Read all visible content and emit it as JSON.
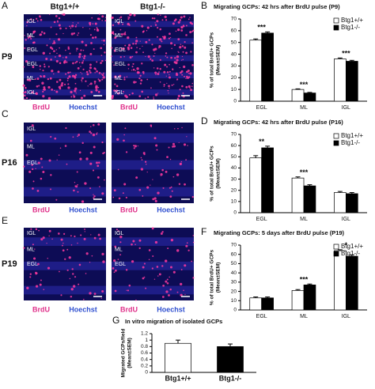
{
  "figure": {
    "headers": [
      "Btg1+/+",
      "Btg1-/-"
    ],
    "rows": [
      {
        "letter": "A",
        "age": "P9",
        "layers": [
          [
            "IGL",
            "ML",
            "EGL",
            "EGL",
            "ML",
            "IGL"
          ],
          [
            "IGL",
            "ML",
            "EGL",
            "EGL",
            "ML",
            "IGL"
          ]
        ],
        "stains": [
          "BrdU",
          "Hoechst"
        ]
      },
      {
        "letter": "C",
        "age": "P16",
        "layers": [
          [
            "IGL",
            "ML",
            "EGL"
          ],
          []
        ],
        "stains": [
          "BrdU",
          "Hoechst"
        ]
      },
      {
        "letter": "E",
        "age": "P19",
        "layers": [
          [
            "IGL",
            "ML",
            "EGL"
          ],
          [
            "IGL",
            "ML",
            "EGL"
          ]
        ],
        "stains": [
          "BrdU",
          "Hoechst"
        ]
      }
    ]
  },
  "chart_data": [
    {
      "type": "bar",
      "letter": "B",
      "title": "Migrating GCPs: 42 hrs after BrdU pulse (P9)",
      "ylabel": [
        "% of total BrdU+ GCPs",
        "(Mean±SEM)"
      ],
      "categories": [
        "EGL",
        "ML",
        "IGL"
      ],
      "series": [
        {
          "name": "Btg1+/+",
          "color": "#ffffff",
          "values": [
            52,
            10,
            36
          ],
          "errors": [
            1,
            0.5,
            0.8
          ]
        },
        {
          "name": "Btg1-/-",
          "color": "#000000",
          "values": [
            58,
            7,
            34
          ],
          "errors": [
            1,
            0.5,
            0.8
          ]
        }
      ],
      "significance": [
        "***",
        "***",
        "***"
      ],
      "ylim": [
        0,
        70
      ],
      "yticks": [
        0,
        10,
        20,
        30,
        40,
        50,
        60,
        70
      ]
    },
    {
      "type": "bar",
      "letter": "D",
      "title": "Migrating GCPs: 42 hrs after BrdU pulse (P16)",
      "ylabel": [
        "% of total BrdU+ GCPs",
        "(Mean±SEM)"
      ],
      "categories": [
        "EGL",
        "ML",
        "IGL"
      ],
      "series": [
        {
          "name": "Btg1+/+",
          "color": "#ffffff",
          "values": [
            49,
            31,
            18
          ],
          "errors": [
            2,
            1,
            1
          ]
        },
        {
          "name": "Btg1-/-",
          "color": "#000000",
          "values": [
            58,
            24,
            17
          ],
          "errors": [
            1.5,
            1,
            1
          ]
        }
      ],
      "significance": [
        "**",
        "***",
        null
      ],
      "ylim": [
        0,
        70
      ],
      "yticks": [
        0,
        10,
        20,
        30,
        40,
        50,
        60,
        70
      ]
    },
    {
      "type": "bar",
      "letter": "F",
      "title": "Migrating GCPs: 5 days after BrdU pulse (P19)",
      "ylabel": [
        "% of total BrdU+ GCPs",
        "(Mean±SEM)"
      ],
      "categories": [
        "EGL",
        "ML",
        "IGL"
      ],
      "series": [
        {
          "name": "Btg1+/+",
          "color": "#ffffff",
          "values": [
            13,
            21,
            64
          ],
          "errors": [
            1,
            1,
            1
          ]
        },
        {
          "name": "Btg1-/-",
          "color": "#000000",
          "values": [
            13,
            27,
            58
          ],
          "errors": [
            1,
            1,
            1.5
          ]
        }
      ],
      "significance": [
        null,
        "***",
        "*"
      ],
      "ylim": [
        0,
        70
      ],
      "yticks": [
        0,
        10,
        20,
        30,
        40,
        50,
        60,
        70
      ]
    },
    {
      "type": "bar",
      "letter": "G",
      "title": "In vitro migration of isolated GCPs",
      "ylabel": [
        "Migrated GCPs/field",
        "(Mean±SEM)"
      ],
      "categories": [
        "Btg1+/+",
        "Btg1-/-"
      ],
      "values": [
        0.9,
        0.8
      ],
      "errors": [
        0.1,
        0.08
      ],
      "colors": [
        "#ffffff",
        "#000000"
      ],
      "ylim": [
        0,
        1.2
      ],
      "yticks": [
        0,
        0.2,
        0.4,
        0.6,
        0.8,
        1,
        1.2
      ]
    }
  ]
}
